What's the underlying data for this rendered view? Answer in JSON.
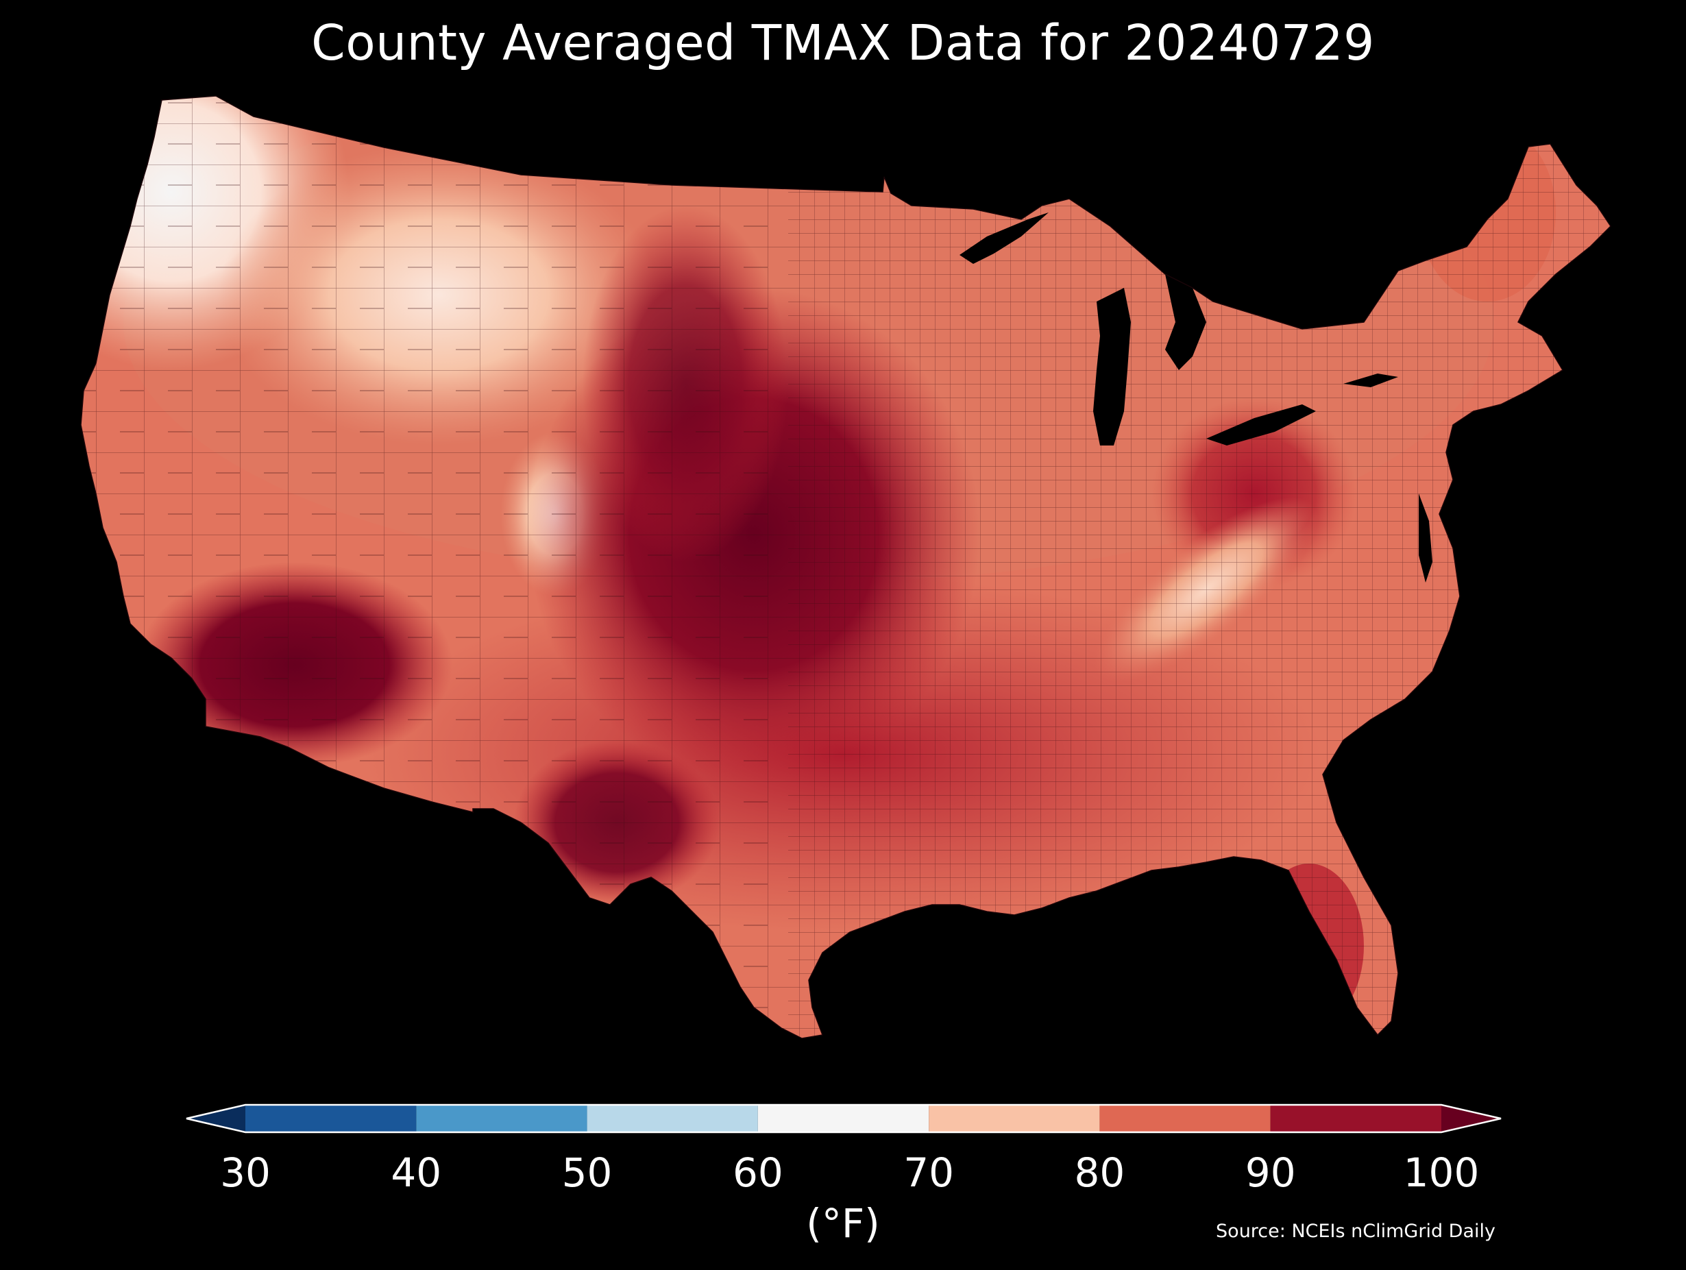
{
  "title": "County Averaged TMAX Data for 20240729",
  "colorbar": {
    "units_label": "(°F)",
    "ticks": [
      "30",
      "40",
      "50",
      "60",
      "70",
      "80",
      "90",
      "100"
    ],
    "bins": [
      {
        "from": 30,
        "to": 40,
        "color": "#1a5799"
      },
      {
        "from": 40,
        "to": 50,
        "color": "#4a98c9"
      },
      {
        "from": 50,
        "to": 60,
        "color": "#b8d8e9"
      },
      {
        "from": 60,
        "to": 70,
        "color": "#f5f5f5"
      },
      {
        "from": 70,
        "to": 80,
        "color": "#f9c2a6"
      },
      {
        "from": 80,
        "to": 90,
        "color": "#df6853"
      },
      {
        "from": 90,
        "to": 100,
        "color": "#98112a"
      }
    ],
    "under_color": "#0a2d5c",
    "over_color": "#67001f"
  },
  "source": "Source: NCEIs nClimGrid Daily",
  "map": {
    "region": "Contiguous United States, counties",
    "land_fill": "#e2745e",
    "hot_fill": "#b9202f",
    "hottest_fill": "#67001f",
    "cool_fill": "#f7c4a8",
    "coolest_fill": "#fbe7dd",
    "water_fill": "#000000"
  }
}
